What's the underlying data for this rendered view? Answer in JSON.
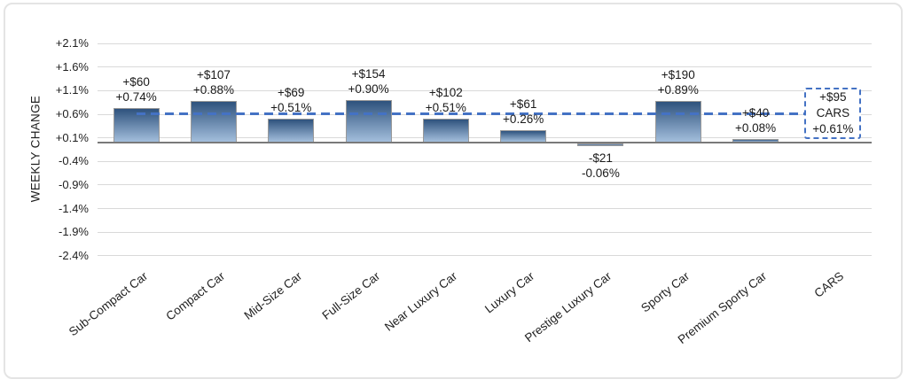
{
  "chart_data": {
    "type": "bar",
    "title": "",
    "ylabel": "WEEKLY CHANGE",
    "ylim": [
      -2.4,
      2.1
    ],
    "grid": true,
    "legend_position": "none",
    "y_ticks": [
      {
        "value": 2.1,
        "label": "+2.1%"
      },
      {
        "value": 1.6,
        "label": "+1.6%"
      },
      {
        "value": 1.1,
        "label": "+1.1%"
      },
      {
        "value": 0.6,
        "label": "+0.6%"
      },
      {
        "value": 0.1,
        "label": "+0.1%"
      },
      {
        "value": -0.4,
        "label": "-0.4%"
      },
      {
        "value": -0.9,
        "label": "-0.9%"
      },
      {
        "value": -1.4,
        "label": "-1.4%"
      },
      {
        "value": -1.9,
        "label": "-1.9%"
      },
      {
        "value": -2.4,
        "label": "-2.4%"
      }
    ],
    "categories": [
      "Sub-Compact Car",
      "Compact Car",
      "Mid-Size Car",
      "Full-Size Car",
      "Near Luxury Car",
      "Luxury Car",
      "Prestige Luxury Car",
      "Sporty Car",
      "Premium Sporty Car",
      "CARS"
    ],
    "bars": [
      {
        "category": "Sub-Compact Car",
        "dollar": 60,
        "pct": 0.74,
        "dollar_label": "+$60",
        "pct_label": "+0.74%"
      },
      {
        "category": "Compact Car",
        "dollar": 107,
        "pct": 0.88,
        "dollar_label": "+$107",
        "pct_label": "+0.88%"
      },
      {
        "category": "Mid-Size Car",
        "dollar": 69,
        "pct": 0.51,
        "dollar_label": "+$69",
        "pct_label": "+0.51%"
      },
      {
        "category": "Full-Size Car",
        "dollar": 154,
        "pct": 0.9,
        "dollar_label": "+$154",
        "pct_label": "+0.90%"
      },
      {
        "category": "Near Luxury Car",
        "dollar": 102,
        "pct": 0.51,
        "dollar_label": "+$102",
        "pct_label": "+0.51%"
      },
      {
        "category": "Luxury Car",
        "dollar": 61,
        "pct": 0.26,
        "dollar_label": "+$61",
        "pct_label": "+0.26%"
      },
      {
        "category": "Prestige Luxury Car",
        "dollar": -21,
        "pct": -0.06,
        "dollar_label": "-$21",
        "pct_label": "-0.06%"
      },
      {
        "category": "Sporty Car",
        "dollar": 190,
        "pct": 0.89,
        "dollar_label": "+$190",
        "pct_label": "+0.89%"
      },
      {
        "category": "Premium Sporty Car",
        "dollar": 40,
        "pct": 0.08,
        "dollar_label": "+$40",
        "pct_label": "+0.08%"
      }
    ],
    "summary": {
      "category": "CARS",
      "dollar": 95,
      "pct": 0.61,
      "dollar_label": "+$95",
      "name_label": "CARS",
      "pct_label": "+0.61%"
    },
    "average_line": {
      "pct": 0.61,
      "style": "dashed"
    },
    "colors": {
      "bar_gradient_top": "#2e527d",
      "bar_gradient_bottom": "#a3bedc",
      "bar_border": "#999999",
      "gridline": "#d9d9d9",
      "zero_axis": "#7a7a7a",
      "dash_blue": "#4472c4",
      "text": "#1f1f1f"
    }
  }
}
